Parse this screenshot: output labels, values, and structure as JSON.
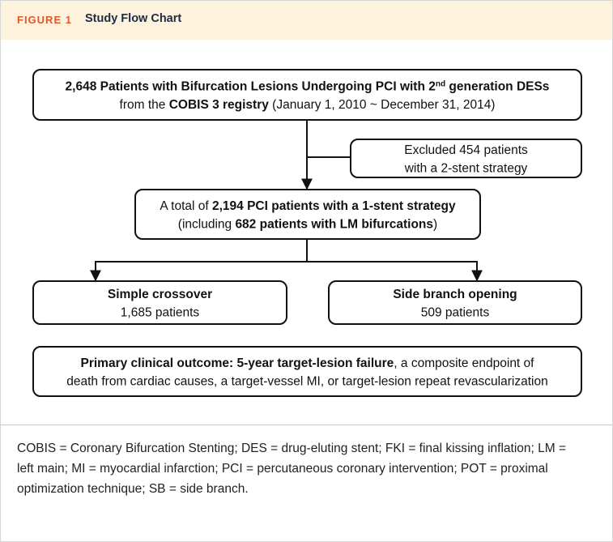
{
  "header": {
    "label": "FIGURE 1",
    "title": "Study Flow Chart"
  },
  "nodes": [
    {
      "lines": [
        [
          {
            "text": "2,648 Patients with Bifurcation Lesions Undergoing PCI with 2",
            "bold": true
          },
          {
            "text": "nd",
            "bold": true,
            "sup": true
          },
          {
            "text": " generation DESs",
            "bold": true
          }
        ],
        [
          {
            "text": "from the "
          },
          {
            "text": "COBIS 3 registry",
            "bold": true
          },
          {
            "text": " (January 1, 2010 ~ December 31, 2014)"
          }
        ]
      ]
    },
    {
      "lines": [
        [
          {
            "text": "Excluded 454 patients"
          }
        ],
        [
          {
            "text": "with a 2-stent strategy"
          }
        ]
      ]
    },
    {
      "lines": [
        [
          {
            "text": "A total of "
          },
          {
            "text": "2,194 PCI patients with a 1-stent strategy",
            "bold": true
          }
        ],
        [
          {
            "text": "(including "
          },
          {
            "text": "682 patients with LM bifurcations",
            "bold": true
          },
          {
            "text": ")"
          }
        ]
      ]
    },
    {
      "lines": [
        [
          {
            "text": "Simple crossover",
            "bold": true
          }
        ],
        [
          {
            "text": "1,685 patients"
          }
        ]
      ]
    },
    {
      "lines": [
        [
          {
            "text": "Side branch opening",
            "bold": true
          }
        ],
        [
          {
            "text": "509 patients"
          }
        ]
      ]
    },
    {
      "lines": [
        [
          {
            "text": "Primary clinical outcome: 5-year target-lesion failure",
            "bold": true
          },
          {
            "text": ", a composite endpoint of"
          }
        ],
        [
          {
            "text": "death from cardiac causes, a target-vessel MI, or target-lesion repeat revascularization"
          }
        ]
      ]
    }
  ],
  "caption": "COBIS = Coronary Bifurcation Stenting; DES = drug-eluting stent; FKI = final kissing inflation; LM = left main; MI = myocardial infarction; PCI = percutaneous coronary intervention; POT = proximal optimization technique; SB = side branch."
}
